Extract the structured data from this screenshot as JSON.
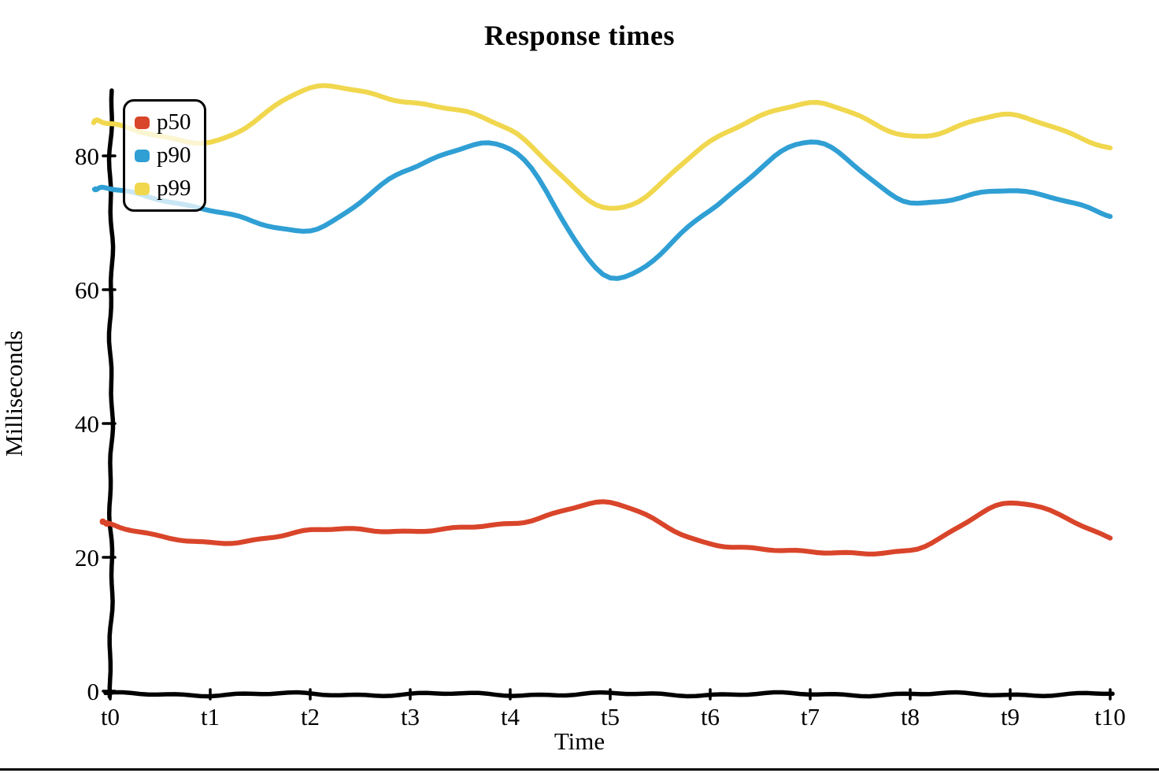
{
  "chart_data": {
    "type": "line",
    "style": "hand-drawn",
    "title": "Response times",
    "xlabel": "Time",
    "ylabel": "Milliseconds",
    "categories": [
      "t0",
      "t1",
      "t2",
      "t3",
      "t4",
      "t5",
      "t6",
      "t7",
      "t8",
      "t9",
      "t10"
    ],
    "y_ticks": [
      0,
      20,
      40,
      60,
      80
    ],
    "ylim": [
      0,
      90
    ],
    "grid": false,
    "legend_position": "top-left",
    "axis_color": "#000000",
    "series": [
      {
        "name": "p50",
        "color": "#d9452a",
        "values": [
          25,
          22,
          24,
          24,
          25,
          28,
          22,
          21,
          21,
          28,
          23
        ]
      },
      {
        "name": "p90",
        "color": "#2f9fd4",
        "values": [
          75,
          72,
          69,
          78,
          81,
          62,
          72,
          82,
          73,
          75,
          71
        ]
      },
      {
        "name": "p99",
        "color": "#f0d74e",
        "values": [
          85,
          82,
          90,
          88,
          84,
          72,
          82,
          88,
          83,
          86,
          81
        ]
      }
    ]
  },
  "page": {
    "background": "#ffffff",
    "bottom_rule_color": "#000000"
  }
}
